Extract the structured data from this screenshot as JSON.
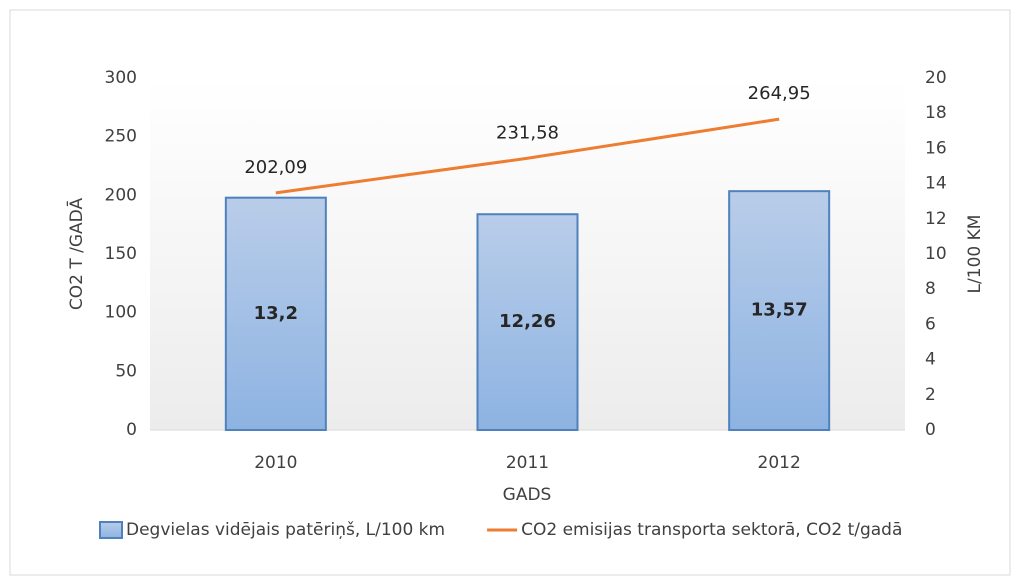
{
  "chart_data": {
    "type": "bar",
    "categories": [
      "2010",
      "2011",
      "2012"
    ],
    "series": [
      {
        "name": "Degvielas vidējais patēriņš, L/100 km",
        "type": "bar",
        "axis": "y2",
        "color": "#8db3e2",
        "values": [
          13.2,
          12.26,
          13.57
        ],
        "value_labels": [
          "13,2",
          "12,26",
          "13,57"
        ]
      },
      {
        "name": "CO2 emisijas transporta sektorā, CO2 t/gadā",
        "type": "line",
        "color": "#ed7d31",
        "values": [
          202.09,
          231.58,
          264.95
        ],
        "value_labels": [
          "202,09",
          "231,58",
          "264,95"
        ]
      }
    ],
    "xlabel": "GADS",
    "ylabel": "CO2 T /GADĀ",
    "y2label": "L/100 KM",
    "ylim": [
      0,
      300
    ],
    "yticks": [
      0,
      50,
      100,
      150,
      200,
      250,
      300
    ],
    "y2lim": [
      0,
      20
    ],
    "y2ticks": [
      0,
      2,
      4,
      6,
      8,
      10,
      12,
      14,
      16,
      18,
      20
    ],
    "legend": "bottom"
  }
}
